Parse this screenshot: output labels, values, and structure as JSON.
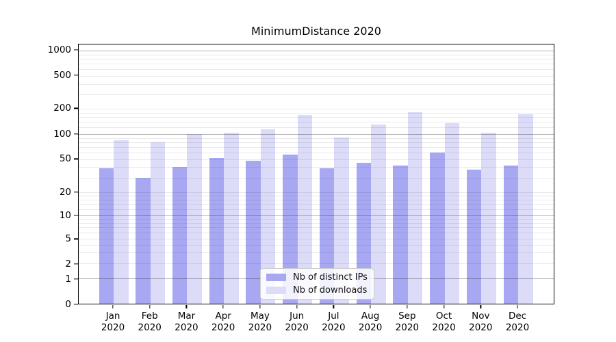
{
  "chart_data": {
    "type": "bar",
    "title": "MinimumDistance 2020",
    "categories": [
      "Jan 2020",
      "Feb 2020",
      "Mar 2020",
      "Apr 2020",
      "May 2020",
      "Jun 2020",
      "Jul 2020",
      "Aug 2020",
      "Sep 2020",
      "Oct 2020",
      "Nov 2020",
      "Dec 2020"
    ],
    "series": [
      {
        "name": "Nb of distinct IPs",
        "color": "#a8a8f2",
        "values": [
          39,
          30,
          40,
          51,
          48,
          57,
          39,
          45,
          42,
          60,
          37,
          42
        ]
      },
      {
        "name": "Nb of downloads",
        "color": "#dcdcf9",
        "values": [
          85,
          80,
          100,
          105,
          114,
          170,
          92,
          130,
          181,
          136,
          104,
          172
        ]
      }
    ],
    "yscale": "symlog",
    "yticks": [
      0,
      1,
      2,
      5,
      10,
      20,
      50,
      100,
      200,
      500,
      1000
    ],
    "minor_grid_values": [
      2,
      3,
      4,
      5,
      6,
      7,
      8,
      9,
      12,
      14,
      16,
      18,
      20,
      30,
      40,
      50,
      60,
      70,
      80,
      90,
      120,
      140,
      160,
      180,
      200,
      300,
      400,
      500,
      600,
      700,
      800,
      900
    ],
    "major_grid_values": [
      1,
      10,
      100,
      1000
    ],
    "ylim": [
      0,
      1200
    ],
    "xlabel": "",
    "ylabel": "",
    "grid": true,
    "legend_position": "lower center",
    "colors": {
      "distinct_ips_bar": "#a8a8f2",
      "downloads_bar": "#dcdcf9",
      "major_gridline": "#b8b8b8",
      "minor_gridline": "#e8e8e8",
      "axis": "#000000",
      "background": "#ffffff"
    }
  }
}
